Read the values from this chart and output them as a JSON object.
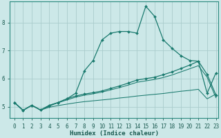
{
  "xlabel": "Humidex (Indice chaleur)",
  "background_color": "#cce8e8",
  "grid_color": "#aacccc",
  "line_color": "#1a7a6e",
  "xlim": [
    -0.5,
    23.3
  ],
  "ylim": [
    4.6,
    8.75
  ],
  "x_ticks": [
    0,
    1,
    2,
    3,
    4,
    5,
    6,
    7,
    8,
    9,
    10,
    11,
    12,
    13,
    14,
    15,
    16,
    17,
    18,
    19,
    20,
    21,
    22,
    23
  ],
  "y_ticks": [
    5,
    6,
    7,
    8
  ],
  "curve1_x": [
    0,
    1,
    2,
    3,
    4,
    5,
    6,
    7,
    8,
    9,
    10,
    11,
    12,
    13,
    14,
    15,
    16,
    17,
    18,
    19,
    20,
    21,
    22,
    23
  ],
  "curve1_y": [
    5.15,
    4.87,
    5.05,
    4.88,
    5.02,
    5.15,
    5.28,
    5.48,
    6.28,
    6.65,
    7.38,
    7.62,
    7.68,
    7.68,
    7.62,
    8.58,
    8.22,
    7.38,
    7.08,
    6.82,
    6.65,
    6.62,
    5.48,
    6.2
  ],
  "curve2_x": [
    0,
    1,
    2,
    3,
    4,
    5,
    6,
    7,
    8,
    9,
    10,
    11,
    12,
    13,
    14,
    15,
    16,
    17,
    18,
    19,
    20,
    21,
    22,
    23
  ],
  "curve2_y": [
    5.15,
    4.87,
    5.05,
    4.88,
    5.05,
    5.15,
    5.28,
    5.38,
    5.45,
    5.5,
    5.56,
    5.65,
    5.74,
    5.84,
    5.95,
    6.0,
    6.05,
    6.14,
    6.24,
    6.36,
    6.48,
    6.62,
    6.15,
    5.42
  ],
  "curve3_x": [
    0,
    1,
    2,
    3,
    4,
    5,
    6,
    7,
    8,
    9,
    10,
    11,
    12,
    13,
    14,
    15,
    16,
    17,
    18,
    19,
    20,
    21,
    22,
    23
  ],
  "curve3_y": [
    5.15,
    4.87,
    5.05,
    4.88,
    5.05,
    5.14,
    5.24,
    5.34,
    5.41,
    5.46,
    5.52,
    5.6,
    5.68,
    5.77,
    5.87,
    5.92,
    5.97,
    6.04,
    6.13,
    6.24,
    6.35,
    6.46,
    6.05,
    5.32
  ],
  "curve4_x": [
    0,
    1,
    2,
    3,
    4,
    5,
    6,
    7,
    8,
    9,
    10,
    11,
    12,
    13,
    14,
    15,
    16,
    17,
    18,
    19,
    20,
    21,
    22,
    23
  ],
  "curve4_y": [
    5.15,
    4.87,
    5.05,
    4.88,
    4.98,
    5.04,
    5.09,
    5.14,
    5.18,
    5.21,
    5.24,
    5.27,
    5.31,
    5.34,
    5.38,
    5.41,
    5.44,
    5.47,
    5.51,
    5.55,
    5.58,
    5.62,
    5.28,
    5.45
  ]
}
